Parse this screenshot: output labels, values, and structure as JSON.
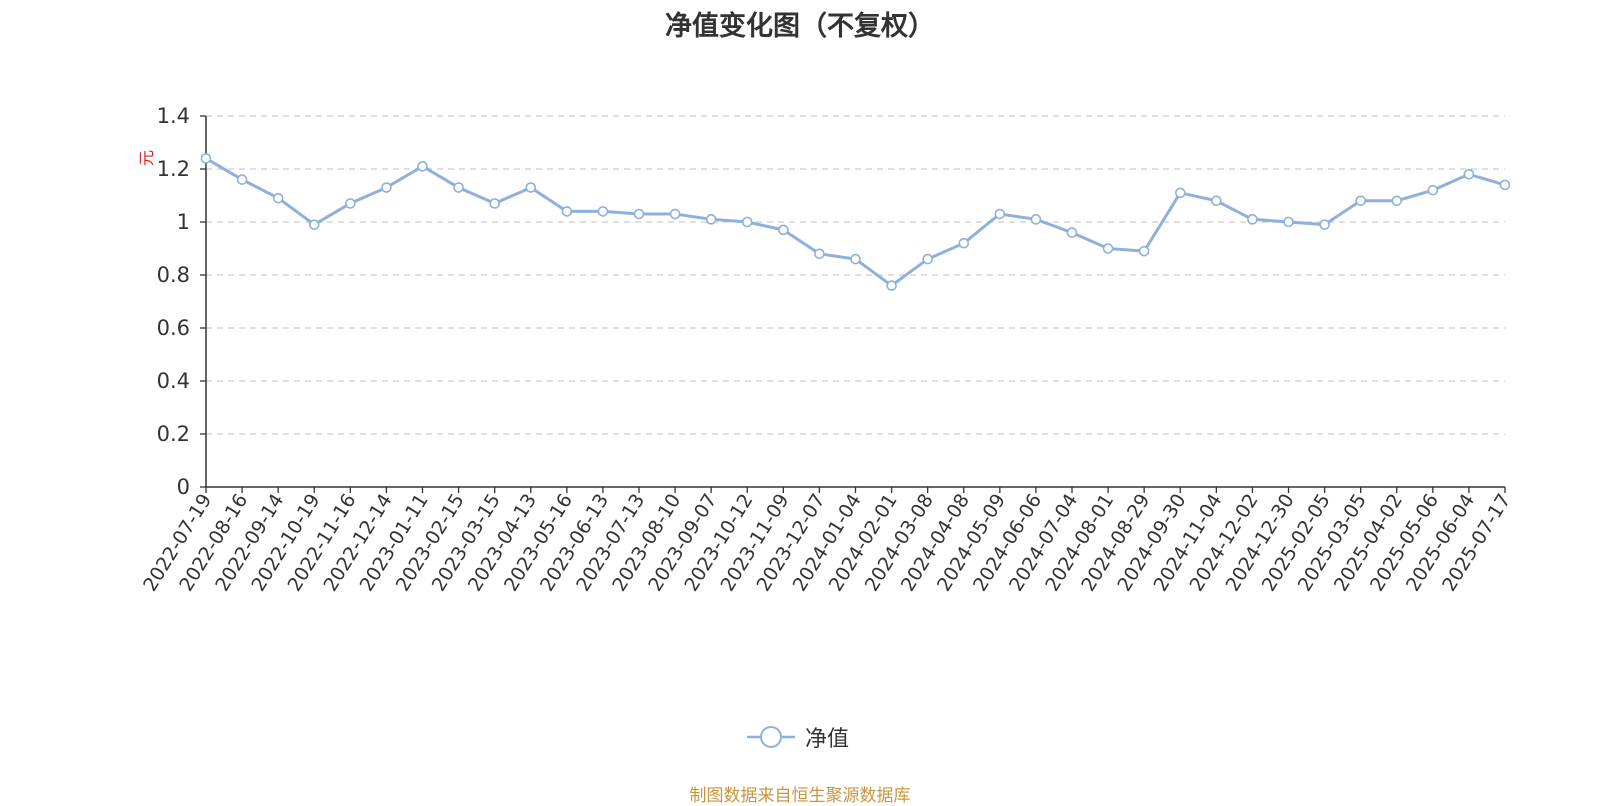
{
  "source_note": "制图数据来自恒生聚源数据库",
  "colors": {
    "series": "#8eb0dc",
    "grid": "#cccccc",
    "axis": "#333333",
    "unit": "#e02020",
    "source": "#c8963e"
  },
  "chart_data": {
    "type": "line",
    "title": "净值变化图（不复权）",
    "unit": "元",
    "ylim": [
      0,
      1.4
    ],
    "ytick_values": [
      0,
      0.2,
      0.4,
      0.6,
      0.8,
      1,
      1.2,
      1.4
    ],
    "ytick_labels": [
      "0",
      "0.2",
      "0.4",
      "0.6",
      "0.8",
      "1",
      "1.2",
      "1.4"
    ],
    "xtick_labels": [
      "2022-07-19",
      "2022-08-16",
      "2022-09-14",
      "2022-10-19",
      "2022-11-16",
      "2022-12-14",
      "2023-01-11",
      "2023-02-15",
      "2023-03-15",
      "2023-04-13",
      "2023-05-16",
      "2023-06-13",
      "2023-07-13",
      "2023-08-10",
      "2023-09-07",
      "2023-10-12",
      "2023-11-09",
      "2023-12-07",
      "2024-01-04",
      "2024-02-01",
      "2024-03-08",
      "2024-04-08",
      "2024-05-09",
      "2024-06-06",
      "2024-07-04",
      "2024-08-01",
      "2024-08-29",
      "2024-09-30",
      "2024-11-04",
      "2024-12-02",
      "2024-12-30",
      "2025-02-05",
      "2025-03-05",
      "2025-04-02",
      "2025-05-06",
      "2025-06-04",
      "2025-07-17"
    ],
    "grid": "horizontal dashed",
    "legend_position": "bottom-center",
    "series": [
      {
        "name": "净值",
        "x": [
          "2022-07-19",
          "2022-08-16",
          "2022-09-14",
          "2022-10-19",
          "2022-11-16",
          "2022-12-14",
          "2023-01-11",
          "2023-02-15",
          "2023-03-15",
          "2023-04-13",
          "2023-05-16",
          "2023-06-13",
          "2023-07-13",
          "2023-08-10",
          "2023-09-07",
          "2023-10-12",
          "2023-11-09",
          "2023-12-07",
          "2024-01-04",
          "2024-02-01",
          "2024-03-08",
          "2024-04-08",
          "2024-05-09",
          "2024-06-06",
          "2024-07-04",
          "2024-08-01",
          "2024-08-29",
          "2024-09-30",
          "2024-11-04",
          "2024-12-02",
          "2024-12-30",
          "2025-02-05",
          "2025-03-05",
          "2025-04-02",
          "2025-05-06",
          "2025-06-04",
          "2025-07-17"
        ],
        "values": [
          1.24,
          1.16,
          1.09,
          0.99,
          1.07,
          1.13,
          1.21,
          1.13,
          1.07,
          1.13,
          1.04,
          1.04,
          1.03,
          1.03,
          1.01,
          1.0,
          0.97,
          0.88,
          0.86,
          0.76,
          0.86,
          0.92,
          1.03,
          1.01,
          0.96,
          0.9,
          0.89,
          1.11,
          1.08,
          1.01,
          1.0,
          0.99,
          1.08,
          1.08,
          1.12,
          1.18,
          1.14
        ]
      }
    ]
  }
}
